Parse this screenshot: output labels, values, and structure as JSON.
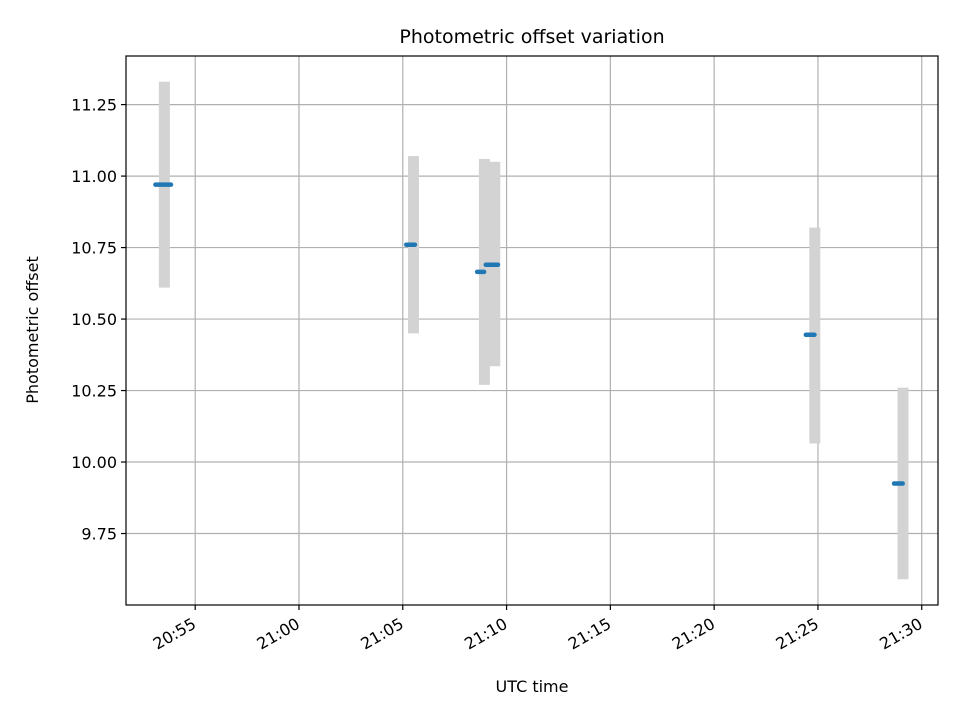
{
  "chart_data": {
    "type": "scatter",
    "title": "Photometric offset variation",
    "xlabel": "UTC time",
    "ylabel": "Photometric offset",
    "xlim": [
      "20:51:40",
      "21:30:47"
    ],
    "ylim": [
      9.5,
      11.42
    ],
    "x_ticks": [
      "20:55",
      "21:00",
      "21:05",
      "21:10",
      "21:15",
      "21:20",
      "21:25",
      "21:30"
    ],
    "y_ticks": [
      "9.75",
      "10.00",
      "10.25",
      "10.50",
      "10.75",
      "11.00",
      "11.25"
    ],
    "grid": true,
    "legend": "none",
    "marker_color": "#1f77b4",
    "errorbar_color": "#d3d3d3",
    "points": [
      {
        "time": "20:53:15",
        "y": 10.97,
        "yerr_low": 10.61,
        "yerr_high": 11.33,
        "time_span": [
          "20:53:05",
          "20:53:50"
        ]
      },
      {
        "time": "21:05:15",
        "y": 10.76,
        "yerr_low": 10.45,
        "yerr_high": 11.07,
        "time_span": [
          "21:05:10",
          "21:05:35"
        ]
      },
      {
        "time": "21:08:40",
        "y": 10.665,
        "yerr_low": 10.27,
        "yerr_high": 11.06,
        "time_span": [
          "21:08:35",
          "21:08:55"
        ]
      },
      {
        "time": "21:09:10",
        "y": 10.69,
        "yerr_low": 10.335,
        "yerr_high": 11.05,
        "time_span": [
          "21:09:00",
          "21:09:35"
        ]
      },
      {
        "time": "21:24:35",
        "y": 10.445,
        "yerr_low": 10.065,
        "yerr_high": 10.82,
        "time_span": [
          "21:24:25",
          "21:24:50"
        ]
      },
      {
        "time": "21:28:50",
        "y": 9.925,
        "yerr_low": 9.59,
        "yerr_high": 10.26,
        "time_span": [
          "21:28:40",
          "21:29:05"
        ]
      }
    ]
  }
}
